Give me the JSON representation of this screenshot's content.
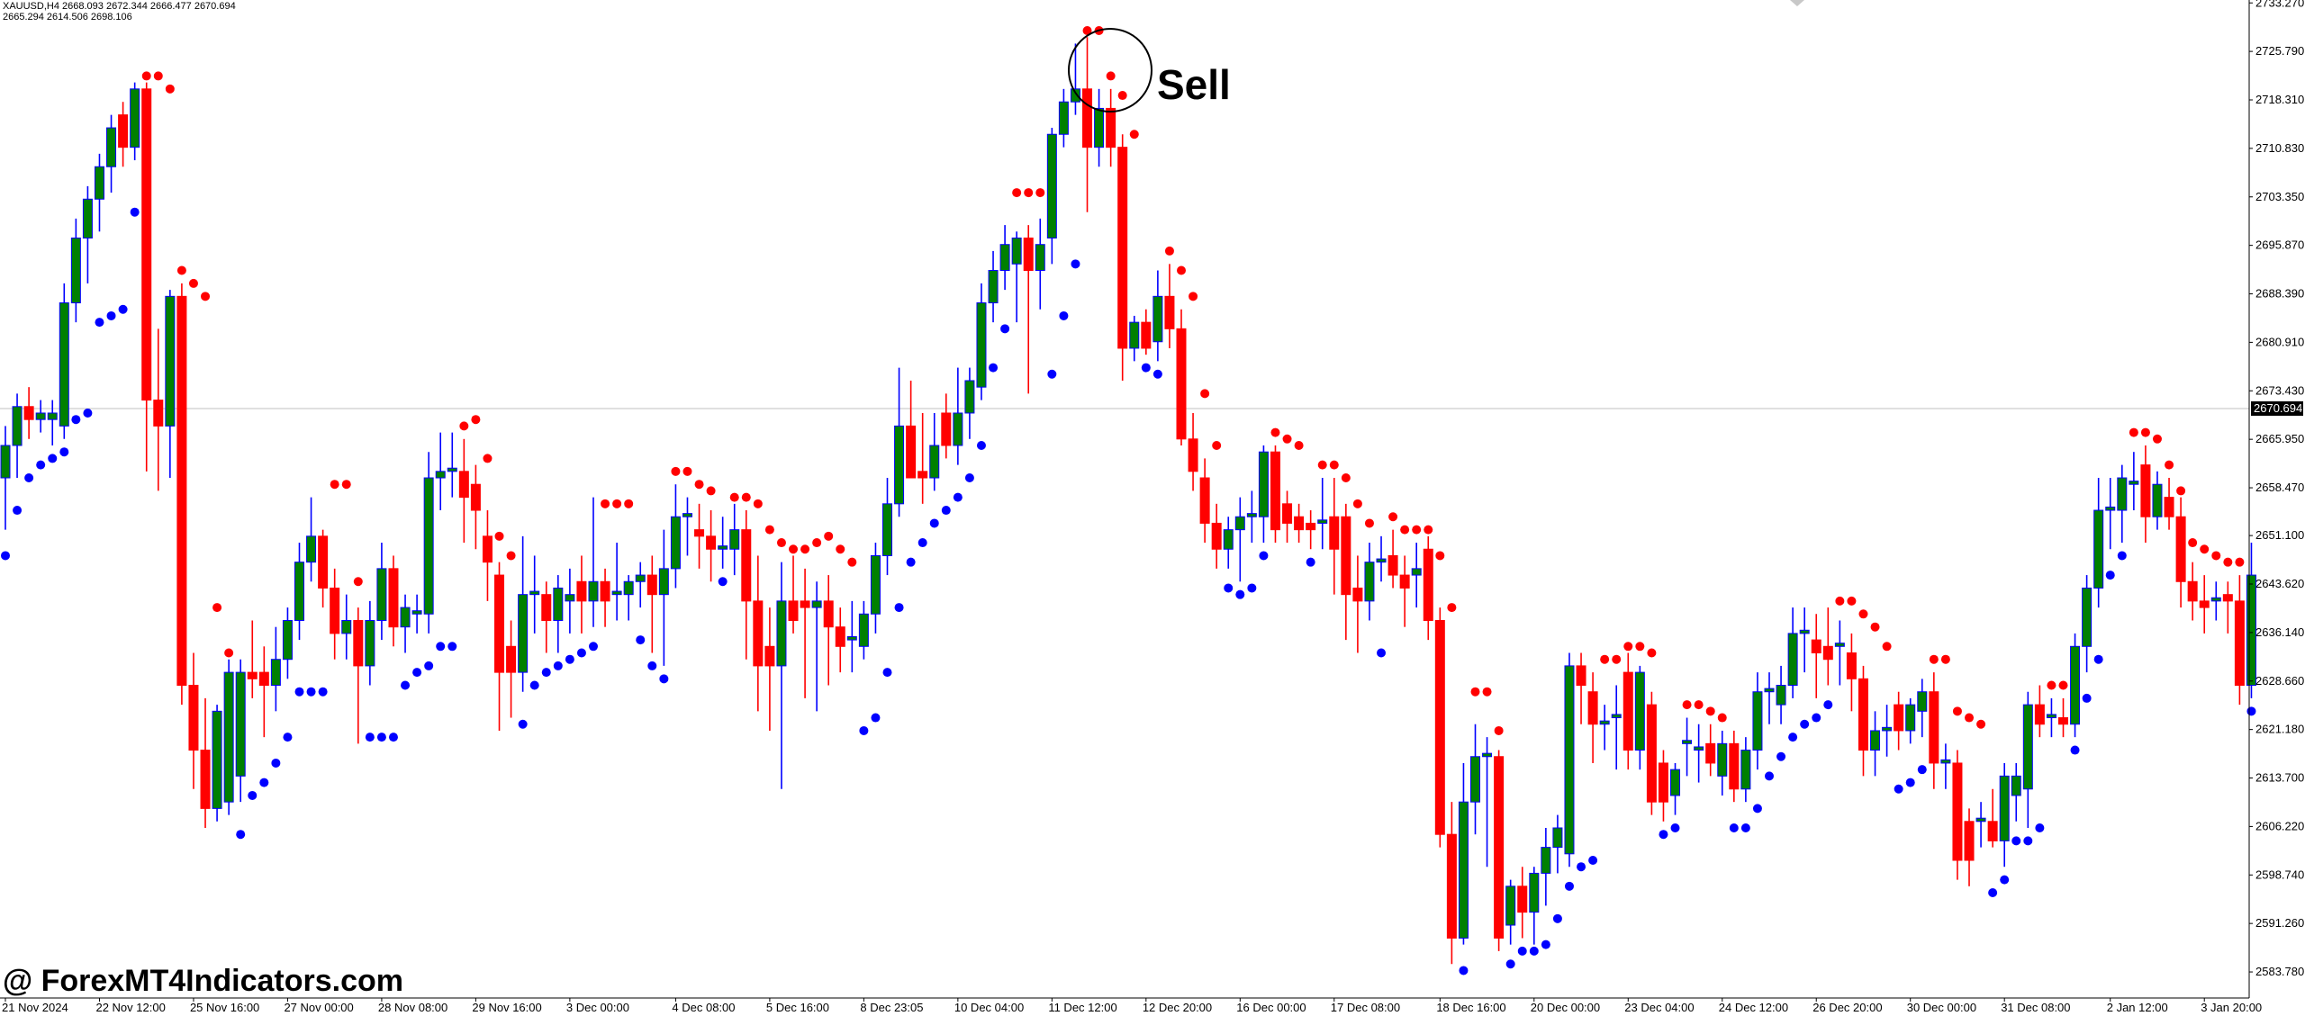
{
  "chart_data": {
    "type": "candlestick",
    "header": [
      "XAUUSD,H4  2668.093 2672.344 2666.477 2670.694",
      "2665.294 2614.506 2698.106"
    ],
    "annotation": "Sell",
    "watermark": "@ ForexMT4Indicators.com",
    "colors": {
      "bull": "#008000",
      "bull_wick": "#0000ff",
      "bear": "#ff0000",
      "sar_above": "#ff0000",
      "sar_below": "#0000ff"
    },
    "ylim": [
      2579.76,
      2733.72
    ],
    "yticks": [
      {
        "value": 2733.27,
        "label": "2733.270"
      },
      {
        "value": 2725.79,
        "label": "2725.790"
      },
      {
        "value": 2718.31,
        "label": "2718.310"
      },
      {
        "value": 2710.83,
        "label": "2710.830"
      },
      {
        "value": 2703.35,
        "label": "2703.350"
      },
      {
        "value": 2695.87,
        "label": "2695.870"
      },
      {
        "value": 2688.39,
        "label": "2688.390"
      },
      {
        "value": 2680.91,
        "label": "2680.910"
      },
      {
        "value": 2673.43,
        "label": "2673.430"
      },
      {
        "value": 2665.95,
        "label": "2665.950"
      },
      {
        "value": 2658.47,
        "label": "2658.470"
      },
      {
        "value": 2651.1,
        "label": "2651.100"
      },
      {
        "value": 2643.62,
        "label": "2643.620"
      },
      {
        "value": 2636.14,
        "label": "2636.140"
      },
      {
        "value": 2628.66,
        "label": "2628.660"
      },
      {
        "value": 2621.18,
        "label": "2621.180"
      },
      {
        "value": 2613.7,
        "label": "2613.700"
      },
      {
        "value": 2606.22,
        "label": "2606.220"
      },
      {
        "value": 2598.74,
        "label": "2598.740"
      },
      {
        "value": 2591.26,
        "label": "2591.260"
      },
      {
        "value": 2583.78,
        "label": "2583.780"
      }
    ],
    "current_price": {
      "value": 2670.694,
      "label": "2670.694"
    },
    "xticks": [
      {
        "value": 0,
        "label": "21 Nov 2024"
      },
      {
        "value": 8,
        "label": "22 Nov 12:00"
      },
      {
        "value": 16,
        "label": "25 Nov 16:00"
      },
      {
        "value": 24,
        "label": "27 Nov 00:00"
      },
      {
        "value": 32,
        "label": "28 Nov 08:00"
      },
      {
        "value": 40,
        "label": "29 Nov 16:00"
      },
      {
        "value": 48,
        "label": "3 Dec 00:00"
      },
      {
        "value": 57,
        "label": "4 Dec 08:00"
      },
      {
        "value": 65,
        "label": "5 Dec 16:00"
      },
      {
        "value": 73,
        "label": "8 Dec 23:05"
      },
      {
        "value": 81,
        "label": "10 Dec 04:00"
      },
      {
        "value": 89,
        "label": "11 Dec 12:00"
      },
      {
        "value": 97,
        "label": "12 Dec 20:00"
      },
      {
        "value": 105,
        "label": "16 Dec 00:00"
      },
      {
        "value": 113,
        "label": "17 Dec 08:00"
      },
      {
        "value": 122,
        "label": "18 Dec 16:00"
      },
      {
        "value": 130,
        "label": "20 Dec 00:00"
      },
      {
        "value": 138,
        "label": "23 Dec 04:00"
      },
      {
        "value": 146,
        "label": "24 Dec 12:00"
      },
      {
        "value": 154,
        "label": "26 Dec 20:00"
      },
      {
        "value": 162,
        "label": "30 Dec 00:00"
      },
      {
        "value": 170,
        "label": "31 Dec 08:00"
      },
      {
        "value": 179,
        "label": "2 Jan 12:00"
      },
      {
        "value": 187,
        "label": "3 Jan 20:00"
      }
    ],
    "ohlc": [
      [
        2660,
        2668,
        2652,
        2665
      ],
      [
        2665,
        2673,
        2660,
        2671
      ],
      [
        2671,
        2674,
        2666,
        2669
      ],
      [
        2669,
        2672,
        2667,
        2670
      ],
      [
        2669,
        2672,
        2665,
        2670
      ],
      [
        2668,
        2690,
        2666,
        2687
      ],
      [
        2687,
        2700,
        2684,
        2697
      ],
      [
        2697,
        2705,
        2690,
        2703
      ],
      [
        2703,
        2710,
        2698,
        2708
      ],
      [
        2708,
        2716,
        2704,
        2714
      ],
      [
        2716,
        2718,
        2708,
        2711
      ],
      [
        2711,
        2721,
        2709,
        2720
      ],
      [
        2720,
        2721,
        2661,
        2672
      ],
      [
        2672,
        2683,
        2658,
        2668
      ],
      [
        2668,
        2689,
        2660,
        2688
      ],
      [
        2688,
        2690,
        2625,
        2628
      ],
      [
        2628,
        2633,
        2612,
        2618
      ],
      [
        2618,
        2626,
        2606,
        2609
      ],
      [
        2609,
        2625,
        2607,
        2624
      ],
      [
        2610,
        2632,
        2608,
        2630
      ],
      [
        2614,
        2632,
        2610,
        2630
      ],
      [
        2630,
        2638,
        2626,
        2629
      ],
      [
        2630,
        2634,
        2620,
        2628
      ],
      [
        2628,
        2637,
        2624,
        2632
      ],
      [
        2632,
        2640,
        2629,
        2638
      ],
      [
        2638,
        2650,
        2635,
        2647
      ],
      [
        2647,
        2657,
        2644,
        2651
      ],
      [
        2651,
        2652,
        2640,
        2643
      ],
      [
        2643,
        2646,
        2632,
        2636
      ],
      [
        2636,
        2642,
        2632,
        2638
      ],
      [
        2638,
        2640,
        2619,
        2631
      ],
      [
        2631,
        2641,
        2628,
        2638
      ],
      [
        2638,
        2650,
        2635,
        2646
      ],
      [
        2646,
        2648,
        2634,
        2637
      ],
      [
        2637,
        2642,
        2633,
        2640
      ],
      [
        2639,
        2642,
        2636,
        2639.5
      ],
      [
        2639,
        2664,
        2636,
        2660
      ],
      [
        2660,
        2667,
        2655,
        2661
      ],
      [
        2661,
        2667,
        2657,
        2661.5
      ],
      [
        2661,
        2666,
        2650,
        2657
      ],
      [
        2659,
        2662,
        2649,
        2655
      ],
      [
        2651,
        2655,
        2641,
        2647
      ],
      [
        2645,
        2647,
        2621,
        2630
      ],
      [
        2634,
        2638,
        2623,
        2630
      ],
      [
        2630,
        2651,
        2627,
        2642
      ],
      [
        2642,
        2648,
        2636,
        2642.5
      ],
      [
        2642,
        2644,
        2633,
        2638
      ],
      [
        2638,
        2645,
        2633,
        2643
      ],
      [
        2641,
        2646,
        2636,
        2642
      ],
      [
        2644,
        2648,
        2636,
        2641
      ],
      [
        2641,
        2657,
        2637,
        2644
      ],
      [
        2644,
        2646,
        2637,
        2641
      ],
      [
        2642,
        2650,
        2638,
        2642.5
      ],
      [
        2642,
        2645,
        2638,
        2644
      ],
      [
        2644,
        2647,
        2640,
        2645
      ],
      [
        2645,
        2648,
        2633,
        2642
      ],
      [
        2642,
        2652,
        2631,
        2646
      ],
      [
        2646,
        2659,
        2643,
        2654
      ],
      [
        2654,
        2657,
        2648,
        2654.5
      ],
      [
        2652,
        2656,
        2646,
        2651
      ],
      [
        2651,
        2655,
        2644,
        2649
      ],
      [
        2649,
        2654,
        2646,
        2649.5
      ],
      [
        2649,
        2656,
        2645,
        2652
      ],
      [
        2652,
        2655,
        2632,
        2641
      ],
      [
        2641,
        2648,
        2624,
        2631
      ],
      [
        2634,
        2640,
        2621,
        2631
      ],
      [
        2631,
        2647,
        2612,
        2641
      ],
      [
        2641,
        2648,
        2636,
        2638
      ],
      [
        2641,
        2646,
        2626,
        2640
      ],
      [
        2640,
        2644,
        2624,
        2641
      ],
      [
        2641,
        2645,
        2628,
        2637
      ],
      [
        2637,
        2640,
        2630,
        2634
      ],
      [
        2635,
        2641,
        2630,
        2635.5
      ],
      [
        2634,
        2641,
        2632,
        2639
      ],
      [
        2639,
        2650,
        2636,
        2648
      ],
      [
        2648,
        2660,
        2645,
        2656
      ],
      [
        2656,
        2677,
        2654,
        2668
      ],
      [
        2668,
        2675,
        2660,
        2660
      ],
      [
        2661,
        2670,
        2656,
        2660
      ],
      [
        2660,
        2670,
        2658,
        2665
      ],
      [
        2670,
        2673,
        2663,
        2665
      ],
      [
        2665,
        2677,
        2662,
        2670
      ],
      [
        2670,
        2677,
        2666,
        2675
      ],
      [
        2674,
        2690,
        2672,
        2687
      ],
      [
        2687,
        2695,
        2684,
        2692
      ],
      [
        2692,
        2699,
        2689,
        2696
      ],
      [
        2693,
        2698,
        2684,
        2697
      ],
      [
        2697,
        2699,
        2673,
        2692
      ],
      [
        2692,
        2700,
        2686,
        2696
      ],
      [
        2697,
        2714,
        2693,
        2713
      ],
      [
        2713,
        2720,
        2711,
        2718
      ],
      [
        2718,
        2727,
        2716,
        2720
      ],
      [
        2720,
        2728,
        2701,
        2711
      ],
      [
        2711,
        2720,
        2708,
        2717
      ],
      [
        2717,
        2720,
        2708,
        2711
      ],
      [
        2711,
        2713,
        2675,
        2680
      ],
      [
        2680,
        2685,
        2678,
        2684
      ],
      [
        2684,
        2686,
        2679,
        2680
      ],
      [
        2681,
        2692,
        2678,
        2688
      ],
      [
        2688,
        2693,
        2680,
        2683
      ],
      [
        2683,
        2686,
        2665,
        2666
      ],
      [
        2666,
        2670,
        2658,
        2661
      ],
      [
        2660,
        2663,
        2650,
        2653
      ],
      [
        2653,
        2656,
        2646,
        2649
      ],
      [
        2649,
        2654,
        2646,
        2652
      ],
      [
        2652,
        2657,
        2644,
        2654
      ],
      [
        2654,
        2658,
        2650,
        2654.5
      ],
      [
        2654,
        2665,
        2650,
        2664
      ],
      [
        2664,
        2665,
        2650,
        2652
      ],
      [
        2656,
        2658,
        2650,
        2653
      ],
      [
        2654,
        2656,
        2650,
        2652
      ],
      [
        2653,
        2655,
        2649,
        2652
      ],
      [
        2653,
        2660,
        2649,
        2653.5
      ],
      [
        2654,
        2660,
        2642,
        2649
      ],
      [
        2654,
        2656,
        2635,
        2642
      ],
      [
        2643,
        2648,
        2633,
        2641
      ],
      [
        2641,
        2650,
        2638,
        2647
      ],
      [
        2647,
        2651,
        2644,
        2647.5
      ],
      [
        2648,
        2652,
        2643,
        2645
      ],
      [
        2645,
        2648,
        2637,
        2643
      ],
      [
        2645,
        2650,
        2640,
        2646
      ],
      [
        2649,
        2651,
        2635,
        2638
      ],
      [
        2638,
        2640,
        2603,
        2605
      ],
      [
        2605,
        2610,
        2585,
        2589
      ],
      [
        2589,
        2616,
        2588,
        2610
      ],
      [
        2610,
        2622,
        2605,
        2617
      ],
      [
        2617,
        2620,
        2600,
        2617.5
      ],
      [
        2617,
        2618,
        2587,
        2589
      ],
      [
        2591,
        2598,
        2588,
        2597
      ],
      [
        2597,
        2600,
        2589,
        2593
      ],
      [
        2593,
        2600,
        2588,
        2599
      ],
      [
        2599,
        2606,
        2594,
        2603
      ],
      [
        2603,
        2608,
        2599,
        2606
      ],
      [
        2602,
        2633,
        2600,
        2631
      ],
      [
        2631,
        2633,
        2622,
        2628
      ],
      [
        2627,
        2630,
        2616,
        2622
      ],
      [
        2622,
        2625,
        2618,
        2622.5
      ],
      [
        2623,
        2628,
        2615,
        2623.5
      ],
      [
        2630,
        2633,
        2615,
        2618
      ],
      [
        2618,
        2631,
        2615,
        2630
      ],
      [
        2625,
        2627,
        2608,
        2610
      ],
      [
        2616,
        2618,
        2607,
        2610
      ],
      [
        2611,
        2616,
        2608,
        2615
      ],
      [
        2619,
        2623,
        2614,
        2619.5
      ],
      [
        2618,
        2622,
        2613,
        2618.5
      ],
      [
        2619,
        2622,
        2614,
        2616
      ],
      [
        2614,
        2621,
        2611,
        2619
      ],
      [
        2619,
        2621,
        2610,
        2612
      ],
      [
        2612,
        2620,
        2610,
        2618
      ],
      [
        2618,
        2630,
        2615,
        2627
      ],
      [
        2627,
        2630,
        2622,
        2627.5
      ],
      [
        2625,
        2631,
        2622,
        2628
      ],
      [
        2628,
        2640,
        2626,
        2636
      ],
      [
        2636,
        2640,
        2630,
        2636.5
      ],
      [
        2635,
        2639,
        2626,
        2633
      ],
      [
        2634,
        2640,
        2628,
        2632
      ],
      [
        2634,
        2638,
        2628,
        2634.5
      ],
      [
        2633,
        2636,
        2624,
        2629
      ],
      [
        2629,
        2631,
        2614,
        2618
      ],
      [
        2618,
        2624,
        2614,
        2621
      ],
      [
        2621,
        2625,
        2617,
        2621.5
      ],
      [
        2625,
        2627,
        2618,
        2621
      ],
      [
        2621,
        2626,
        2619,
        2625
      ],
      [
        2624,
        2629,
        2620,
        2627
      ],
      [
        2627,
        2630,
        2612,
        2616
      ],
      [
        2616,
        2619,
        2612,
        2616.5
      ],
      [
        2616,
        2618,
        2598,
        2601
      ],
      [
        2607,
        2609,
        2597,
        2601
      ],
      [
        2607,
        2610,
        2603,
        2607.5
      ],
      [
        2607,
        2612,
        2603,
        2604
      ],
      [
        2604,
        2616,
        2600,
        2614
      ],
      [
        2611,
        2616,
        2607,
        2614
      ],
      [
        2612,
        2627,
        2606,
        2625
      ],
      [
        2625,
        2628,
        2620,
        2622
      ],
      [
        2623,
        2626,
        2620,
        2623.5
      ],
      [
        2623,
        2626,
        2620,
        2622
      ],
      [
        2622,
        2636,
        2620,
        2634
      ],
      [
        2634,
        2645,
        2630,
        2643
      ],
      [
        2643,
        2660,
        2640,
        2655
      ],
      [
        2655,
        2660,
        2649,
        2655.5
      ],
      [
        2655,
        2662,
        2650,
        2660
      ],
      [
        2659,
        2664,
        2655,
        2659.5
      ],
      [
        2662,
        2665,
        2650,
        2654
      ],
      [
        2654,
        2661,
        2652,
        2659
      ],
      [
        2657,
        2660,
        2652,
        2654
      ],
      [
        2654,
        2657,
        2640,
        2644
      ],
      [
        2644,
        2647,
        2638,
        2641
      ],
      [
        2641,
        2645,
        2636,
        2640
      ],
      [
        2641,
        2644,
        2638,
        2641.5
      ],
      [
        2642,
        2644,
        2636,
        2641
      ],
      [
        2641,
        2645,
        2625,
        2628
      ],
      [
        2628,
        2650,
        2626,
        2645
      ]
    ],
    "sar": [
      2648,
      2655,
      2660,
      2662,
      2663,
      2664,
      2669,
      2670,
      2684,
      2685,
      2686,
      2701,
      2722,
      2722,
      2720,
      2692,
      2690,
      2688,
      2640,
      2633,
      2605,
      2611,
      2613,
      2616,
      2620,
      2627,
      2627,
      2627,
      2659,
      2659,
      2644,
      2620,
      2620,
      2620,
      2628,
      2630,
      2631,
      2634,
      2634,
      2668,
      2669,
      2663,
      2651,
      2648,
      2622,
      2628,
      2630,
      2631,
      2632,
      2633,
      2634,
      2656,
      2656,
      2656,
      2635,
      2631,
      2629,
      2661,
      2661,
      2659,
      2658,
      2644,
      2657,
      2657,
      2656,
      2652,
      2650,
      2649,
      2649,
      2650,
      2651,
      2649,
      2647,
      2621,
      2623,
      2630,
      2640,
      2647,
      2650,
      2653,
      2655,
      2657,
      2660,
      2665,
      2677,
      2683,
      2704,
      2704,
      2704,
      2676,
      2685,
      2693,
      2729,
      2729,
      2722,
      2719,
      2713,
      2677,
      2676,
      2695,
      2692,
      2688,
      2673,
      2665,
      2643,
      2642,
      2643,
      2648,
      2667,
      2666,
      2665,
      2647,
      2662,
      2662,
      2660,
      2656,
      2653,
      2633,
      2654,
      2652,
      2652,
      2652,
      2648,
      2640,
      2584,
      2627,
      2627,
      2621,
      2585,
      2587,
      2587,
      2588,
      2592,
      2597,
      2600,
      2601,
      2632,
      2632,
      2634,
      2634,
      2633,
      2605,
      2606,
      2625,
      2625,
      2624,
      2623,
      2606,
      2606,
      2609,
      2614,
      2617,
      2620,
      2622,
      2623,
      2625,
      2641,
      2641,
      2639,
      2637,
      2634,
      2612,
      2613,
      2615,
      2632,
      2632,
      2624,
      2623,
      2622,
      2596,
      2598,
      2604,
      2604,
      2606,
      2628,
      2628,
      2618,
      2626,
      2632,
      2645,
      2648,
      2667,
      2667,
      2666,
      2662,
      2658,
      2650,
      2649,
      2648,
      2647,
      2647,
      2624
    ]
  }
}
